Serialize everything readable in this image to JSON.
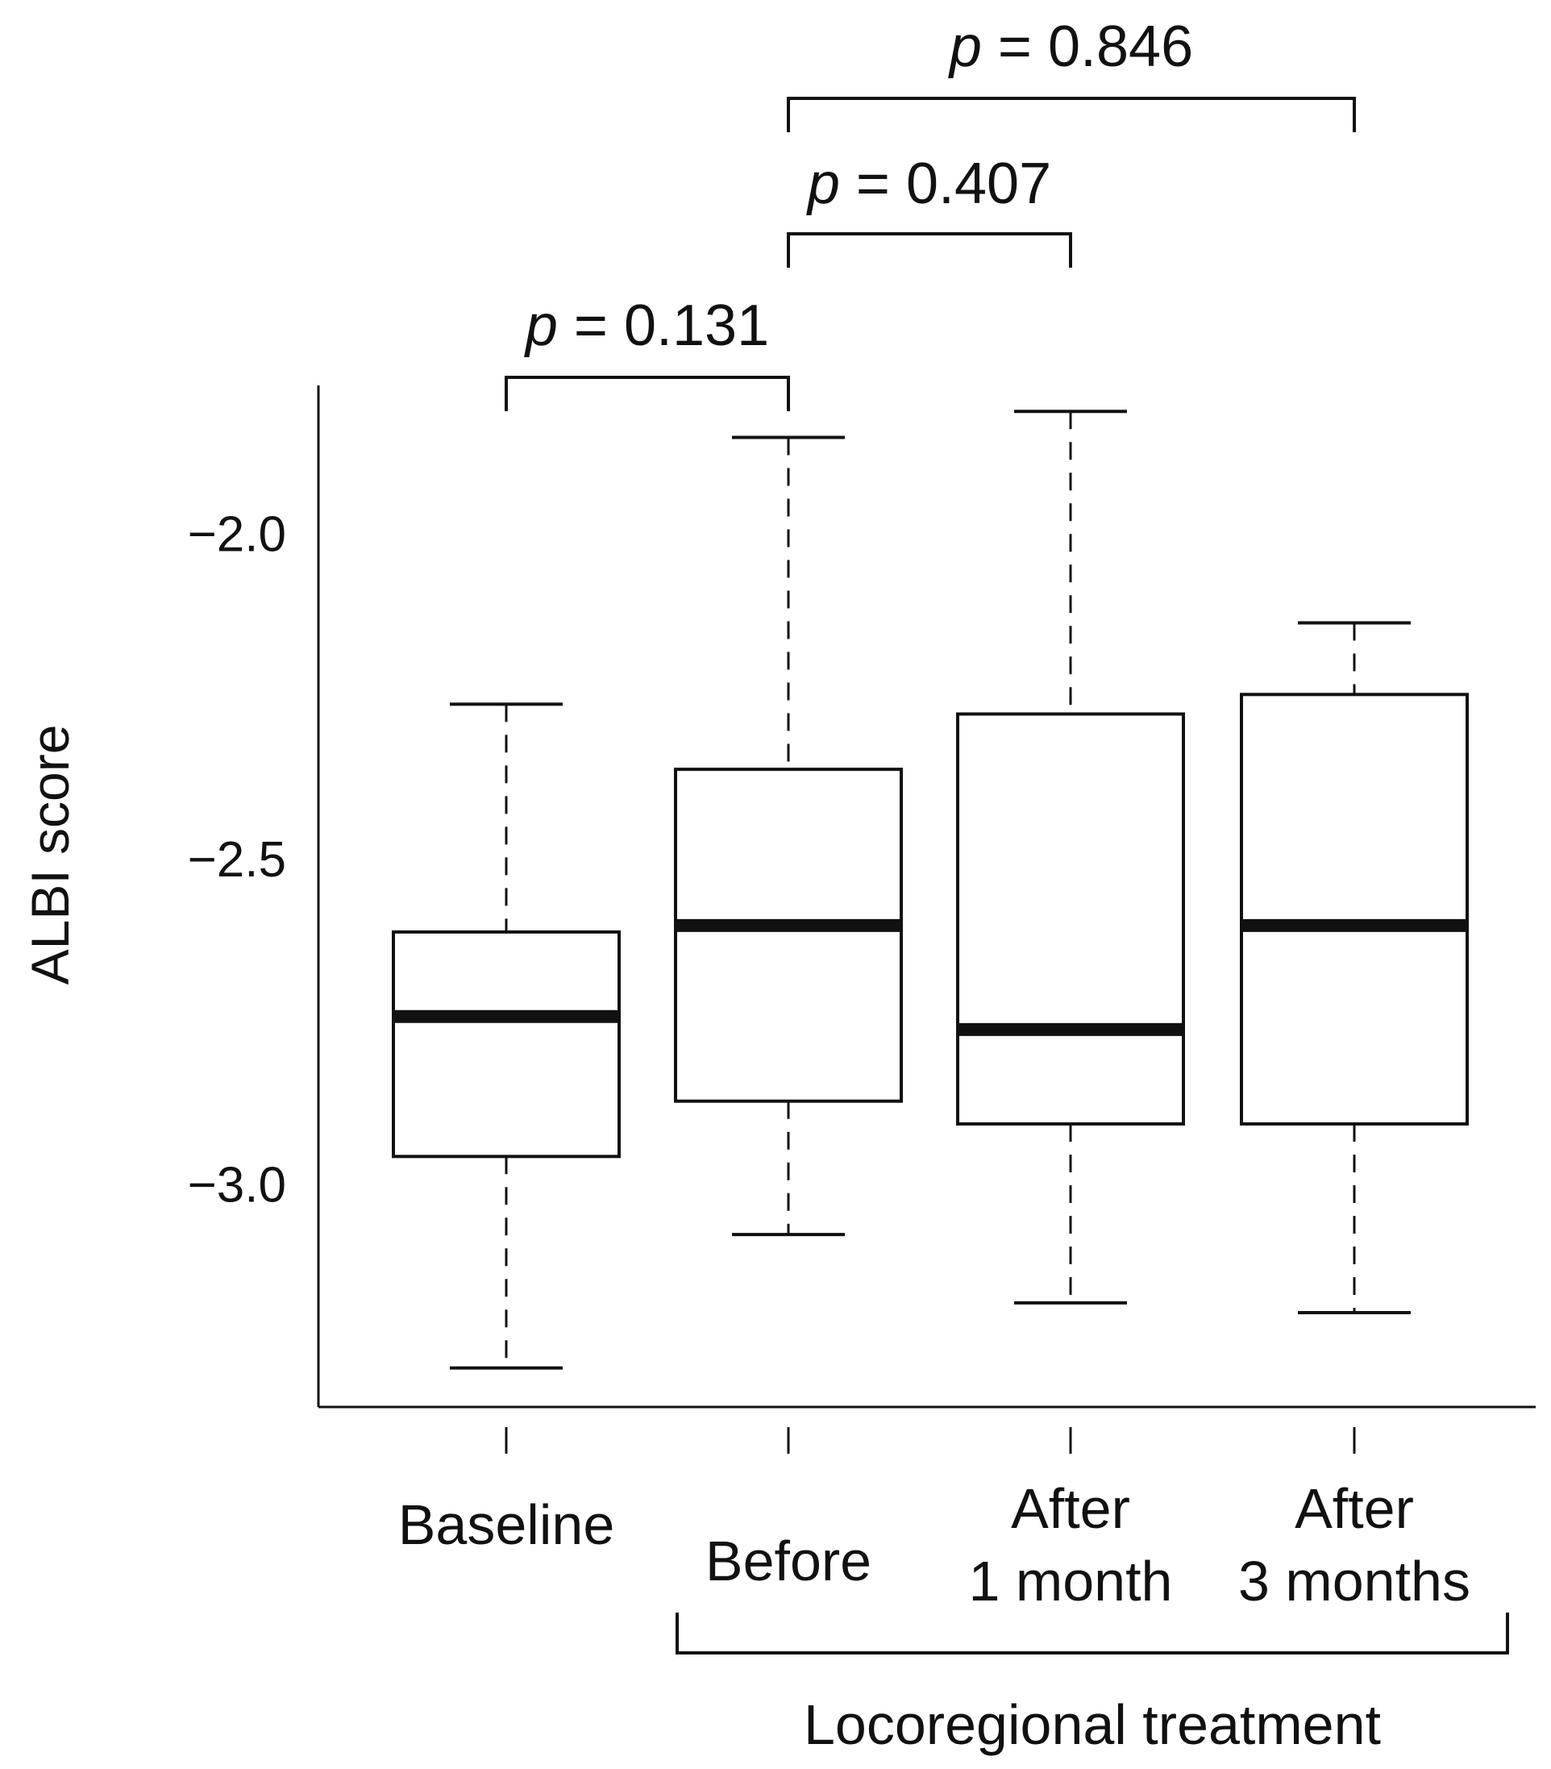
{
  "chart_data": {
    "type": "boxplot",
    "ylabel": "ALBI score",
    "xlabel": "",
    "ylim": [
      -3.34,
      -1.77
    ],
    "yticks": [
      {
        "value": -2.0,
        "label": "−2.0"
      },
      {
        "value": -2.5,
        "label": "−2.5"
      },
      {
        "value": -3.0,
        "label": "−3.0"
      }
    ],
    "categories": [
      {
        "lines": [
          "Baseline"
        ]
      },
      {
        "lines": [
          "Before"
        ]
      },
      {
        "lines": [
          "After",
          "1 month"
        ]
      },
      {
        "lines": [
          "After",
          "3 months"
        ]
      }
    ],
    "boxes": [
      {
        "whisker_high": -2.26,
        "q3": -2.61,
        "median": -2.74,
        "q1": -2.955,
        "whisker_low": -3.28
      },
      {
        "whisker_high": -1.85,
        "q3": -2.36,
        "median": -2.6,
        "q1": -2.87,
        "whisker_low": -3.075
      },
      {
        "whisker_high": -1.81,
        "q3": -2.275,
        "median": -2.76,
        "q1": -2.905,
        "whisker_low": -3.18
      },
      {
        "whisker_high": -2.135,
        "q3": -2.245,
        "median": -2.6,
        "q1": -2.905,
        "whisker_low": -3.195
      }
    ],
    "comparisons": [
      {
        "from": 0,
        "to": 1,
        "p_label": "p",
        "p_value": "= 0.131"
      },
      {
        "from": 1,
        "to": 2,
        "p_label": "p",
        "p_value": "= 0.407"
      },
      {
        "from": 1,
        "to": 3,
        "p_label": "p",
        "p_value": "= 0.846"
      }
    ],
    "group_bracket": {
      "from": 1,
      "to": 3,
      "label": "Locoregional treatment"
    }
  }
}
